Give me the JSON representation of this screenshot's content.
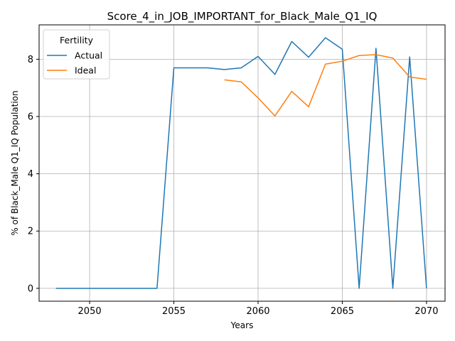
{
  "chart_data": {
    "type": "line",
    "title": "Score_4_in_JOB_IMPORTANT_for_Black_Male_Q1_IQ",
    "xlabel": "Years",
    "ylabel": "% of Black_Male Q1_IQ Population",
    "xlim": [
      2047.0,
      2071.1
    ],
    "ylim": [
      -0.45,
      9.2
    ],
    "xticks": [
      2050,
      2055,
      2060,
      2065,
      2070
    ],
    "yticks": [
      0,
      2,
      4,
      6,
      8
    ],
    "grid": true,
    "legend": {
      "title": "Fertility",
      "placement": "top-left"
    },
    "series": [
      {
        "name": "Actual",
        "color": "#1f77b4",
        "x": [
          2048,
          2049,
          2050,
          2051,
          2052,
          2053,
          2054,
          2055,
          2056,
          2057,
          2058,
          2059,
          2060,
          2061,
          2062,
          2063,
          2064,
          2065,
          2066,
          2067,
          2068,
          2069,
          2070
        ],
        "y": [
          0,
          0,
          0,
          0,
          0,
          0,
          0,
          7.7,
          7.7,
          7.7,
          7.64,
          7.7,
          8.1,
          7.47,
          8.62,
          8.07,
          8.75,
          8.35,
          0,
          8.38,
          0,
          8.08,
          0
        ]
      },
      {
        "name": "Ideal",
        "color": "#ff7f0e",
        "x": [
          2058,
          2059,
          2060,
          2061,
          2062,
          2063,
          2064,
          2065,
          2066,
          2067,
          2068,
          2069,
          2070
        ],
        "y": [
          7.28,
          7.21,
          6.65,
          6.02,
          6.88,
          6.34,
          7.83,
          7.93,
          8.13,
          8.16,
          8.04,
          7.38,
          7.3
        ]
      }
    ]
  }
}
